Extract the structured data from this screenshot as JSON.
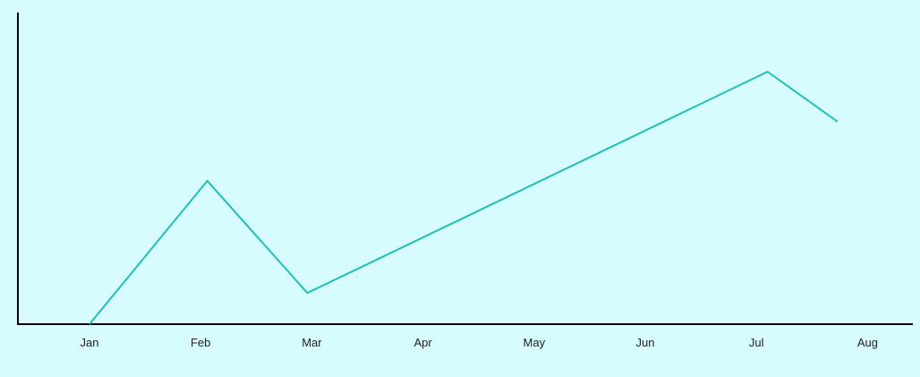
{
  "chart_data": {
    "type": "line",
    "title": "",
    "xlabel": "",
    "ylabel": "",
    "categories": [
      "Jan",
      "Feb",
      "Mar",
      "Apr",
      "May",
      "Jun",
      "Jul",
      "Aug"
    ],
    "series": [
      {
        "points": [
          {
            "x": 0.0,
            "y": 0
          },
          {
            "x": 1.06,
            "y": 46
          },
          {
            "x": 1.96,
            "y": 10
          },
          {
            "x": 6.1,
            "y": 81
          },
          {
            "x": 6.73,
            "y": 65
          }
        ]
      }
    ],
    "ylim": [
      0,
      100
    ],
    "grid": false,
    "legend": "none",
    "colors": {
      "background": "#d6fcff",
      "line": "#1fbfb5",
      "axis": "#000000"
    }
  }
}
